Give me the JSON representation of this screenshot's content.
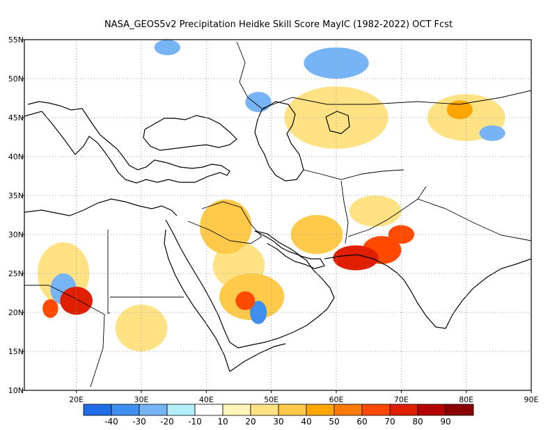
{
  "title": "NASA_GEOS5v2  Precipitation Heidke Skill Score MayIC (1982-2022) OCT Fcst",
  "map": {
    "lon_range": [
      12,
      90
    ],
    "lat_range": [
      10,
      55
    ],
    "lon_ticks": [
      {
        "value": 20,
        "label": "20E"
      },
      {
        "value": 30,
        "label": "30E"
      },
      {
        "value": 40,
        "label": "40E"
      },
      {
        "value": 50,
        "label": "50E"
      },
      {
        "value": 60,
        "label": "60E"
      },
      {
        "value": 70,
        "label": "70E"
      },
      {
        "value": 80,
        "label": "80E"
      },
      {
        "value": 90,
        "label": "90E"
      }
    ],
    "lat_ticks": [
      {
        "value": 10,
        "label": "10N"
      },
      {
        "value": 15,
        "label": "15N"
      },
      {
        "value": 20,
        "label": "20N"
      },
      {
        "value": 25,
        "label": "25N"
      },
      {
        "value": 30,
        "label": "30N"
      },
      {
        "value": 35,
        "label": "35N"
      },
      {
        "value": 40,
        "label": "40N"
      },
      {
        "value": 45,
        "label": "45N"
      },
      {
        "value": 50,
        "label": "50N"
      },
      {
        "value": 55,
        "label": "55N"
      }
    ],
    "gridlines": "dotted",
    "skill_regions": [
      {
        "lon": 63,
        "lat": 27,
        "rx": 3.5,
        "ry": 1.6,
        "level": 70
      },
      {
        "lon": 67,
        "lat": 28,
        "rx": 3,
        "ry": 1.8,
        "level": 60
      },
      {
        "lon": 70,
        "lat": 30,
        "rx": 2,
        "ry": 1.2,
        "level": 60
      },
      {
        "lon": 20,
        "lat": 21.5,
        "rx": 2.5,
        "ry": 1.8,
        "level": 70
      },
      {
        "lon": 16,
        "lat": 20.5,
        "rx": 1.2,
        "ry": 1.2,
        "level": 60
      },
      {
        "lon": 46,
        "lat": 21.5,
        "rx": 1.5,
        "ry": 1.2,
        "level": 60
      },
      {
        "lon": 47,
        "lat": 22,
        "rx": 5,
        "ry": 3,
        "level": 30
      },
      {
        "lon": 43,
        "lat": 31,
        "rx": 4,
        "ry": 3.5,
        "level": 30
      },
      {
        "lon": 45,
        "lat": 26,
        "rx": 4,
        "ry": 3,
        "level": 20
      },
      {
        "lon": 57,
        "lat": 30,
        "rx": 4,
        "ry": 2.5,
        "level": 30
      },
      {
        "lon": 66,
        "lat": 33,
        "rx": 4,
        "ry": 2,
        "level": 20
      },
      {
        "lon": 18,
        "lat": 25,
        "rx": 4,
        "ry": 4,
        "level": 20
      },
      {
        "lon": 30,
        "lat": 18,
        "rx": 4,
        "ry": 3,
        "level": 20
      },
      {
        "lon": 60,
        "lat": 45,
        "rx": 8,
        "ry": 4,
        "level": 20
      },
      {
        "lon": 80,
        "lat": 45,
        "rx": 6,
        "ry": 3,
        "level": 20
      },
      {
        "lon": 79,
        "lat": 46,
        "rx": 2,
        "ry": 1.2,
        "level": 40
      },
      {
        "lon": 48,
        "lat": 20,
        "rx": 1.3,
        "ry": 1.5,
        "level": -30
      },
      {
        "lon": 18,
        "lat": 23,
        "rx": 2,
        "ry": 2,
        "level": -20
      },
      {
        "lon": 60,
        "lat": 52,
        "rx": 5,
        "ry": 2,
        "level": -20
      },
      {
        "lon": 48,
        "lat": 47,
        "rx": 2,
        "ry": 1.3,
        "level": -20
      },
      {
        "lon": 34,
        "lat": 54,
        "rx": 2,
        "ry": 1,
        "level": -20
      },
      {
        "lon": 84,
        "lat": 43,
        "rx": 2,
        "ry": 1,
        "level": -20
      }
    ]
  },
  "colorbar": {
    "colors": [
      "#1f6ee8",
      "#3f8ff0",
      "#76b4f6",
      "#b2eef8",
      "#ffffff",
      "#fff5b8",
      "#ffe283",
      "#ffc94a",
      "#ffa700",
      "#ff7a00",
      "#ff4a00",
      "#e01e00",
      "#b40000",
      "#8a0000"
    ],
    "labels": [
      "-40",
      "-30",
      "-20",
      "-10",
      "10",
      "20",
      "30",
      "40",
      "50",
      "60",
      "70",
      "80",
      "90"
    ]
  }
}
